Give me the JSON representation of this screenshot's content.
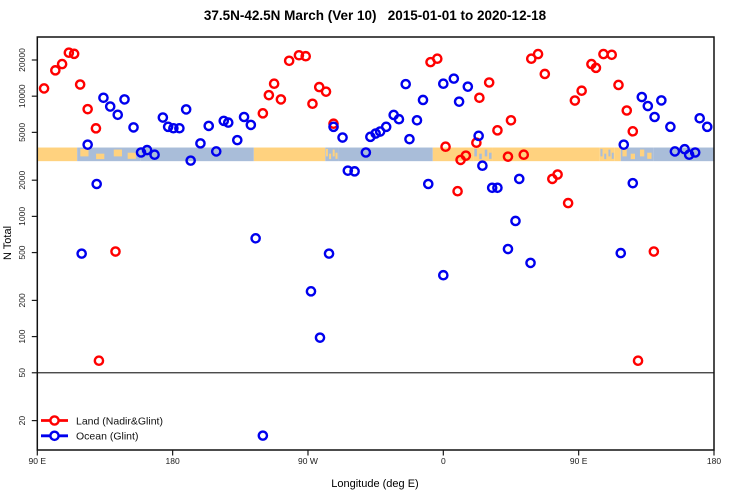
{
  "title": "37.5N-42.5N March (Ver 10)   2015-01-01 to 2020-12-18",
  "chart_data": {
    "type": "scatter",
    "xlabel": "Longitude (deg E)",
    "ylabel": "N Total",
    "x_axis": {
      "note": "longitude axis spans 450 deg, wrapping 90E->180->90W->0->90E->180",
      "range_deg_e": [
        90,
        540
      ],
      "tick_lons_deg_e": [
        90,
        180,
        270,
        360,
        450,
        540
      ],
      "tick_labels": [
        "90 E",
        "180",
        "90 W",
        "0",
        "90 E",
        "180"
      ]
    },
    "y_axis": {
      "scale": "log10",
      "range": [
        12,
        30500
      ],
      "ticks": [
        20000,
        10000,
        5000,
        2000,
        1000,
        500,
        200,
        100,
        50,
        20
      ]
    },
    "reference_line_n": 50,
    "coastline_band": {
      "n_range": [
        2880,
        3740
      ],
      "land_color": "#FFD27F",
      "ocean_color": "#A9BDD9",
      "segments": [
        {
          "from": 90,
          "to": 116.5,
          "type": "land"
        },
        {
          "from": 116.5,
          "to": 158.5,
          "type": "mixed_ocean"
        },
        {
          "from": 158.5,
          "to": 234,
          "type": "ocean"
        },
        {
          "from": 234,
          "to": 281.5,
          "type": "land"
        },
        {
          "from": 281.5,
          "to": 290,
          "type": "mixed_ocean"
        },
        {
          "from": 290,
          "to": 353,
          "type": "ocean"
        },
        {
          "from": 353,
          "to": 380,
          "type": "land"
        },
        {
          "from": 380,
          "to": 393,
          "type": "mixed_land"
        },
        {
          "from": 393,
          "to": 464,
          "type": "land"
        },
        {
          "from": 464,
          "to": 474,
          "type": "mixed_land"
        },
        {
          "from": 474,
          "to": 478,
          "type": "land"
        },
        {
          "from": 478,
          "to": 500,
          "type": "mixed_ocean"
        },
        {
          "from": 500,
          "to": 540,
          "type": "ocean"
        }
      ]
    },
    "series": [
      {
        "name": "Land (Nadir&Glint)",
        "color": "#FF0000",
        "points": [
          [
            94.5,
            11600
          ],
          [
            102,
            16400
          ],
          [
            106.5,
            18500
          ],
          [
            111,
            23000
          ],
          [
            114.5,
            22500
          ],
          [
            118.5,
            12500
          ],
          [
            123.5,
            7800
          ],
          [
            129,
            5400
          ],
          [
            142,
            510
          ],
          [
            131,
            63
          ],
          [
            240,
            7200
          ],
          [
            244,
            10200
          ],
          [
            247.5,
            12700
          ],
          [
            252,
            9400
          ],
          [
            257.5,
            19700
          ],
          [
            264,
            21900
          ],
          [
            268.5,
            21500
          ],
          [
            273,
            8650
          ],
          [
            277.5,
            11900
          ],
          [
            282,
            10900
          ],
          [
            287,
            5900
          ],
          [
            351.5,
            19200
          ],
          [
            356,
            20500
          ],
          [
            361.5,
            3800
          ],
          [
            369.5,
            1620
          ],
          [
            371.5,
            2950
          ],
          [
            375,
            3200
          ],
          [
            382,
            4100
          ],
          [
            384,
            9700
          ],
          [
            390.5,
            13000
          ],
          [
            396,
            5200
          ],
          [
            403,
            3140
          ],
          [
            405,
            6300
          ],
          [
            413.5,
            3260
          ],
          [
            418.5,
            20500
          ],
          [
            423,
            22400
          ],
          [
            427.5,
            15300
          ],
          [
            432.5,
            2050
          ],
          [
            436,
            2230
          ],
          [
            443,
            1290
          ],
          [
            447.5,
            9200
          ],
          [
            452,
            11100
          ],
          [
            458.5,
            18500
          ],
          [
            461.5,
            17200
          ],
          [
            466.5,
            22400
          ],
          [
            472,
            22100
          ],
          [
            476.5,
            12400
          ],
          [
            482,
            7600
          ],
          [
            486,
            5100
          ],
          [
            489.5,
            63
          ],
          [
            500,
            510
          ]
        ]
      },
      {
        "name": "Ocean (Glint)",
        "color": "#0000EE",
        "points": [
          [
            119.5,
            490
          ],
          [
            123.5,
            3950
          ],
          [
            129.5,
            1860
          ],
          [
            134,
            9700
          ],
          [
            138.5,
            8200
          ],
          [
            143.5,
            7000
          ],
          [
            148,
            9400
          ],
          [
            154,
            5500
          ],
          [
            159,
            3400
          ],
          [
            163,
            3560
          ],
          [
            168,
            3260
          ],
          [
            173.5,
            6640
          ],
          [
            177,
            5560
          ],
          [
            180.5,
            5410
          ],
          [
            184.5,
            5410
          ],
          [
            189,
            7760
          ],
          [
            192,
            2910
          ],
          [
            198.5,
            4050
          ],
          [
            204,
            5660
          ],
          [
            209,
            3470
          ],
          [
            214,
            6230
          ],
          [
            217,
            6030
          ],
          [
            223,
            4310
          ],
          [
            227.5,
            6710
          ],
          [
            232,
            5770
          ],
          [
            235.2,
            657
          ],
          [
            240,
            15
          ],
          [
            272,
            238
          ],
          [
            278,
            98
          ],
          [
            284,
            490
          ],
          [
            287,
            5560
          ],
          [
            293,
            4530
          ],
          [
            296.5,
            2400
          ],
          [
            301,
            2370
          ],
          [
            308.5,
            3400
          ],
          [
            311.5,
            4590
          ],
          [
            315,
            4890
          ],
          [
            318,
            5080
          ],
          [
            322,
            5560
          ],
          [
            327,
            6980
          ],
          [
            330.5,
            6430
          ],
          [
            335,
            12600
          ],
          [
            337.5,
            4390
          ],
          [
            342.5,
            6300
          ],
          [
            346.5,
            9300
          ],
          [
            350,
            1860
          ],
          [
            360,
            12700
          ],
          [
            360,
            324
          ],
          [
            367,
            14000
          ],
          [
            370.5,
            9000
          ],
          [
            376.3,
            12000
          ],
          [
            383.5,
            4680
          ],
          [
            386,
            2640
          ],
          [
            392.5,
            1730
          ],
          [
            396,
            1730
          ],
          [
            403,
            535
          ],
          [
            408,
            916
          ],
          [
            410.5,
            2050
          ],
          [
            418,
            410
          ],
          [
            478,
            495
          ],
          [
            480,
            3950
          ],
          [
            486,
            1890
          ],
          [
            492,
            9840
          ],
          [
            496,
            8280
          ],
          [
            500.5,
            6710
          ],
          [
            505,
            9220
          ],
          [
            511,
            5560
          ],
          [
            514,
            3470
          ],
          [
            520.5,
            3620
          ],
          [
            523.5,
            3260
          ],
          [
            527.5,
            3400
          ],
          [
            530.5,
            6550
          ],
          [
            535.5,
            5560
          ]
        ]
      }
    ],
    "legend": {
      "position": "bottom-left",
      "entries": [
        "Land (Nadir&Glint)",
        "Ocean (Glint)"
      ]
    }
  }
}
